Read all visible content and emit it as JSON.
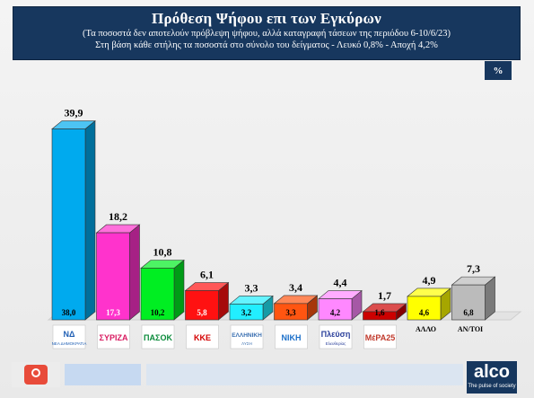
{
  "header": {
    "title": "Πρόθεση Ψήφου επι των Εγκύρων",
    "subtitle1": "(Τα ποσοστά δεν αποτελούν πρόβλεψη ψήφου, αλλά καταγραφή τάσεων της περιόδου  6-10/6/23)",
    "subtitle2": "Στη βάση κάθε στήλης τα ποσοστά στο σύνολο του δείγματος - Λευκό 0,8% - Αποχή 4,2%"
  },
  "unit_badge": "%",
  "footer": {
    "brand": "alco",
    "tagline": "The pulse of society"
  },
  "chart_data": {
    "type": "bar",
    "title": "Πρόθεση Ψήφου επι των Εγκύρων",
    "ylim": [
      0,
      40
    ],
    "grid": false,
    "categories": [
      "ΝΕΑ ΔΗΜΟΚΡΑΤΙΑ",
      "ΣΥΡΙΖΑ",
      "ΠΑΣΟΚ",
      "ΚΚΕ",
      "ΕΛΛΗΝΙΚΗ ΛΥΣΗ",
      "ΝΙΚΗ",
      "Πλεύση Ελευθερίας",
      "ΜέΡΑ25",
      "ΑΛΛΟ",
      "ΑΝ/ΤΟΙ"
    ],
    "series": [
      {
        "values": [
          39.9,
          18.2,
          10.8,
          6.1,
          3.3,
          3.4,
          4.4,
          1.7,
          4.9,
          7.3
        ],
        "labels": [
          "39,9",
          "18,2",
          "10,8",
          "6,1",
          "3,3",
          "3,4",
          "4,4",
          "1,7",
          "4,9",
          "7,3"
        ]
      },
      {
        "values": [
          38.0,
          17.3,
          10.2,
          5.8,
          3.2,
          3.3,
          4.2,
          1.6,
          4.6,
          6.8
        ],
        "labels": [
          "38,0",
          "17,3",
          "10,2",
          "5,8",
          "3,2",
          "3,3",
          "4,2",
          "1,6",
          "4,6",
          "6,8"
        ]
      }
    ],
    "bar_colors": [
      "#00aaee",
      "#ff33cc",
      "#00ee22",
      "#ff1111",
      "#22eeff",
      "#ff5511",
      "#ff88ff",
      "#cc0000",
      "#ffff00",
      "#bbbbbb"
    ],
    "inner_label_colors": [
      "#000000",
      "#ffffff",
      "#000000",
      "#ffffff",
      "#000000",
      "#000000",
      "#000000",
      "#000000",
      "#000000",
      "#000000"
    ]
  },
  "logos": [
    {
      "text": "ΝΔ",
      "caption": "ΝΕΑ ΔΗΜΟΚΡΑΤΙΑ",
      "color": "#1f5fb4"
    },
    {
      "text": "ΣΥΡΙΖΑ",
      "caption": "",
      "color": "#d81b60"
    },
    {
      "text": "ΠΑΣΟΚ",
      "caption": "",
      "color": "#0a8a3a"
    },
    {
      "text": "ΚΚΕ",
      "caption": "",
      "color": "#d40000"
    },
    {
      "text": "ΕΛΛΗΝΙΚΗ",
      "caption": "ΛΥΣΗ",
      "color": "#3a6fb0"
    },
    {
      "text": "ΝΙΚΗ",
      "caption": "",
      "color": "#1b6fc9"
    },
    {
      "text": "Πλεύση",
      "caption": "Ελευθερίας",
      "color": "#2a3f9a"
    },
    {
      "text": "ΜέΡΑ25",
      "caption": "",
      "color": "#c0392b"
    }
  ],
  "text_categories": [
    "ΑΛΛΟ",
    "ΑΝ/ΤΟΙ"
  ]
}
